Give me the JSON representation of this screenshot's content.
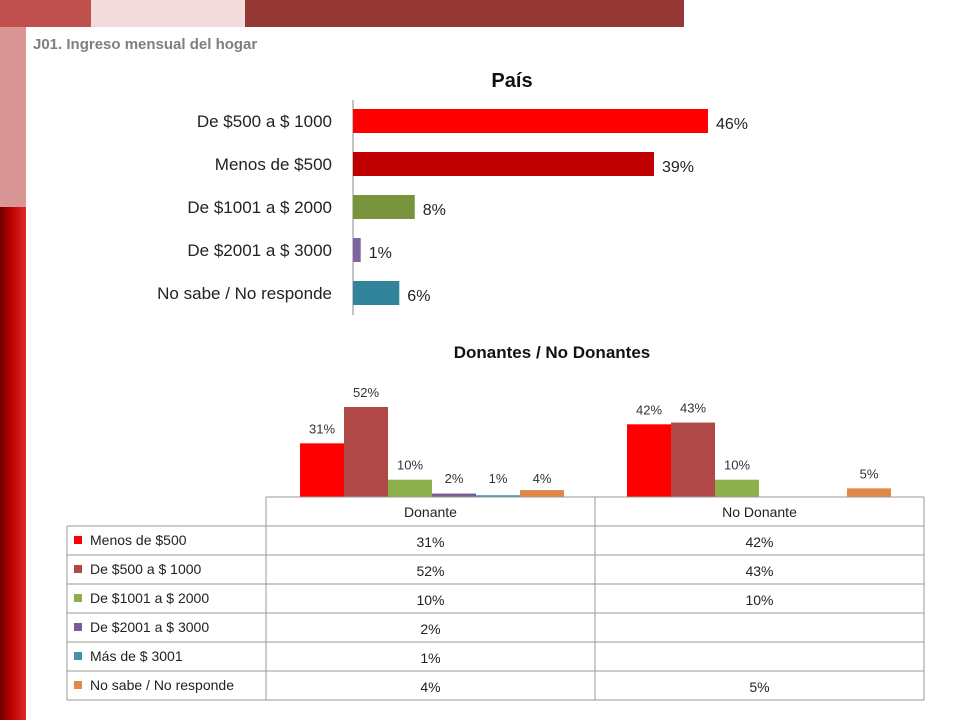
{
  "slide_title": "J01. Ingreso mensual del hogar",
  "chart_data": [
    {
      "type": "bar",
      "orientation": "horizontal",
      "title": "País",
      "categories": [
        "De $500 a $ 1000",
        "Menos de $500",
        "De $1001 a $ 2000",
        "De $2001 a $ 3000",
        "No sabe / No responde"
      ],
      "values": [
        46,
        39,
        8,
        1,
        6
      ],
      "value_labels": [
        "46%",
        "39%",
        "8%",
        "1%",
        "6%"
      ],
      "colors": [
        "#ff0000",
        "#c00000",
        "#77933c",
        "#8064a2",
        "#31849b"
      ],
      "xlim": [
        0,
        60
      ]
    },
    {
      "type": "bar",
      "title": "Donantes / No Donantes",
      "categories": [
        "Donante",
        "No Donante"
      ],
      "ylim": [
        0,
        60
      ],
      "legend_position": "data-table",
      "series": [
        {
          "name": "Menos de $500",
          "color": "#ff0000",
          "values": [
            31,
            42
          ],
          "labels": [
            "31%",
            "42%"
          ]
        },
        {
          "name": "De $500 a $ 1000",
          "color": "#b14848",
          "values": [
            52,
            43
          ],
          "labels": [
            "52%",
            "43%"
          ]
        },
        {
          "name": "De $1001 a $ 2000",
          "color": "#8eb04c",
          "values": [
            10,
            10
          ],
          "labels": [
            "10%",
            "10%"
          ]
        },
        {
          "name": "De $2001 a $ 3000",
          "color": "#7a5d96",
          "values": [
            2,
            null
          ],
          "labels": [
            "2%",
            ""
          ]
        },
        {
          "name": "Más de $ 3001",
          "color": "#3e92ab",
          "values": [
            1,
            null
          ],
          "labels": [
            "1%",
            ""
          ]
        },
        {
          "name": "No sabe / No responde",
          "color": "#e0884a",
          "values": [
            4,
            5
          ],
          "labels": [
            "4%",
            "5%"
          ]
        }
      ]
    }
  ]
}
